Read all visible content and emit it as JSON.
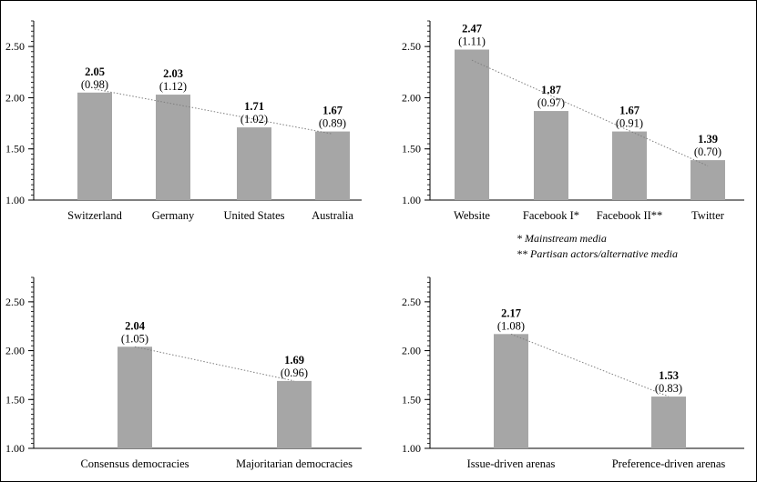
{
  "footnotes": {
    "note1": "* Mainstream media",
    "note2": "** Partisan actors/alternative media"
  },
  "colors": {
    "bar": "#a6a6a6",
    "trendline": "#7f7f7f",
    "axis": "#000000"
  },
  "chart_data": [
    {
      "type": "bar",
      "categories": [
        "Switzerland",
        "Germany",
        "United States",
        "Australia"
      ],
      "values": [
        2.05,
        2.03,
        1.71,
        1.67
      ],
      "sd_labels": [
        "(0.98)",
        "(1.12)",
        "(1.02)",
        "(0.89)"
      ],
      "value_labels": [
        "2.05",
        "2.03",
        "1.71",
        "1.67"
      ],
      "ylim": [
        1.0,
        2.75
      ],
      "yticks": [
        "1.00",
        "1.50",
        "2.00",
        "2.50"
      ],
      "ytick_values": [
        1.0,
        1.5,
        2.0,
        2.5
      ],
      "trendline": "linear, dotted",
      "grid": false
    },
    {
      "type": "bar",
      "categories": [
        "Website",
        "Facebook I*",
        "Facebook II**",
        "Twitter"
      ],
      "values": [
        2.47,
        1.87,
        1.67,
        1.39
      ],
      "sd_labels": [
        "(1.11)",
        "(0.97)",
        "(0.91)",
        "(0.70)"
      ],
      "value_labels": [
        "2.47",
        "1.87",
        "1.67",
        "1.39"
      ],
      "ylim": [
        1.0,
        2.75
      ],
      "yticks": [
        "1.00",
        "1.50",
        "2.00",
        "2.50"
      ],
      "ytick_values": [
        1.0,
        1.5,
        2.0,
        2.5
      ],
      "trendline": "linear, dotted",
      "grid": false
    },
    {
      "type": "bar",
      "categories": [
        "Consensus democracies",
        "Majoritarian democracies"
      ],
      "values": [
        2.04,
        1.69
      ],
      "sd_labels": [
        "(1.05)",
        "(0.96)"
      ],
      "value_labels": [
        "2.04",
        "1.69"
      ],
      "ylim": [
        1.0,
        2.75
      ],
      "yticks": [
        "1.00",
        "1.50",
        "2.00",
        "2.50"
      ],
      "ytick_values": [
        1.0,
        1.5,
        2.0,
        2.5
      ],
      "trendline": "linear, dotted",
      "grid": false
    },
    {
      "type": "bar",
      "categories": [
        "Issue-driven arenas",
        "Preference-driven arenas"
      ],
      "values": [
        2.17,
        1.53
      ],
      "sd_labels": [
        "(1.08)",
        "(0.83)"
      ],
      "value_labels": [
        "2.17",
        "1.53"
      ],
      "ylim": [
        1.0,
        2.75
      ],
      "yticks": [
        "1.00",
        "1.50",
        "2.00",
        "2.50"
      ],
      "ytick_values": [
        1.0,
        1.5,
        2.0,
        2.5
      ],
      "trendline": "linear, dotted",
      "grid": false
    }
  ]
}
